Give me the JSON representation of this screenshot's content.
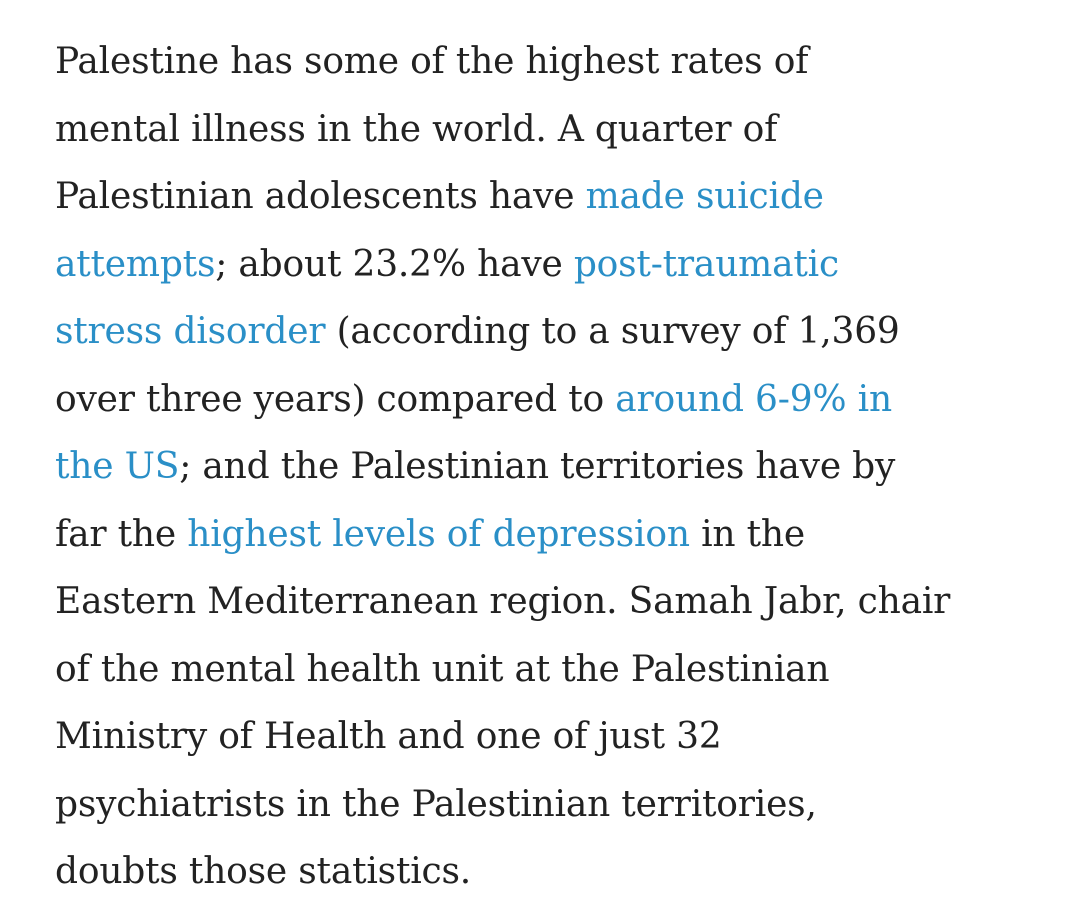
{
  "paragraph": {
    "l1": "Palestine has some of the highest rates of",
    "l2": "mental illness in the world. A quarter of",
    "l3": "Palestinian adolescents have ",
    "l3_link": "made suicide",
    "l4_link": "attempts",
    "l4": "; about 23.2% have ",
    "l4_link2": "post-traumatic",
    "l5_link": "stress disorder",
    "l5": " (according to a survey of 1,369",
    "l6": "over three years) compared to ",
    "l6_link": "around 6-9% in",
    "l7_link": "the US",
    "l7": "; and the Palestinian territories have by",
    "l8": "far the ",
    "l8_link": "highest levels of depression",
    "l8b": " in the",
    "l9": "Eastern Mediterranean region. Samah Jabr, chair",
    "l10": "of the mental health unit at the Palestinian",
    "l11": "Ministry of Health and one of just 32",
    "l12": "psychiatrists in the Palestinian territories,",
    "l13": "doubts those statistics."
  },
  "colors": {
    "text": "#222222",
    "link": "#2a8fc7",
    "background": "#ffffff"
  }
}
